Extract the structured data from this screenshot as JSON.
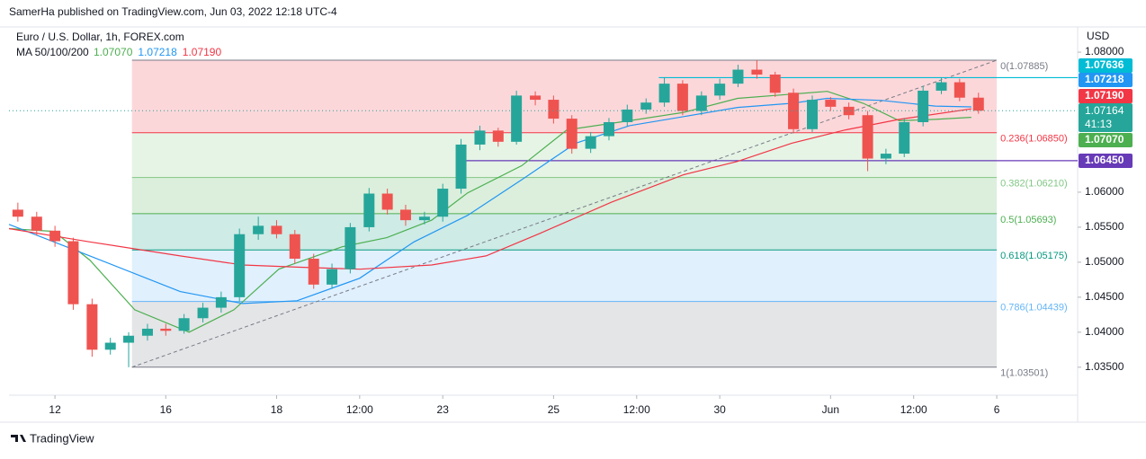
{
  "chart_data": {
    "type": "candlestick",
    "publisher": "SamerHa published on TradingView.com, Jun 03, 2022 12:18 UTC-4",
    "title": "Euro / U.S. Dollar, 1h, FOREX.com",
    "ma_label": "MA 50/100/200",
    "y_unit": "USD",
    "brand": "TradingView",
    "countdown": "41:13",
    "up_color": "#26a69a",
    "down_color": "#ef5350",
    "xlim": [
      -0.83,
      18.46
    ],
    "xticks": [
      {
        "value": 0,
        "label": "12"
      },
      {
        "value": 2,
        "label": "16"
      },
      {
        "value": 4,
        "label": "18"
      },
      {
        "value": 5.5,
        "label": "12:00"
      },
      {
        "value": 7,
        "label": "23"
      },
      {
        "value": 9,
        "label": "25"
      },
      {
        "value": 10.5,
        "label": "12:00"
      },
      {
        "value": 12,
        "label": "30"
      },
      {
        "value": 14,
        "label": "Jun"
      },
      {
        "value": 15.5,
        "label": "12:00"
      },
      {
        "value": 17,
        "label": "6"
      }
    ],
    "ylim": [
      1.031,
      1.0836
    ],
    "yticks": [
      {
        "value": 1.035,
        "label": "1.03500"
      },
      {
        "value": 1.04,
        "label": "1.04000"
      },
      {
        "value": 1.045,
        "label": "1.04500"
      },
      {
        "value": 1.05,
        "label": "1.05000"
      },
      {
        "value": 1.055,
        "label": "1.05500"
      },
      {
        "value": 1.06,
        "label": "1.06000"
      },
      {
        "value": 1.08,
        "label": "1.08000"
      }
    ],
    "x": [
      -0.67,
      -0.33,
      0,
      0.33,
      0.67,
      1,
      1.33,
      1.67,
      2,
      2.33,
      2.67,
      3,
      3.33,
      3.67,
      4,
      4.33,
      4.67,
      5,
      5.33,
      5.67,
      6,
      6.33,
      6.67,
      7,
      7.33,
      7.67,
      8,
      8.33,
      8.67,
      9,
      9.33,
      9.67,
      10,
      10.33,
      10.67,
      11,
      11.33,
      11.67,
      12,
      12.33,
      12.67,
      13,
      13.33,
      13.67,
      14,
      14.33,
      14.67,
      15,
      15.33,
      15.67,
      16,
      16.33,
      16.67
    ],
    "open": [
      1.0575,
      1.0565,
      1.0545,
      1.053,
      1.044,
      1.0375,
      1.0385,
      1.0395,
      1.0405,
      1.0402,
      1.042,
      1.0435,
      1.045,
      1.054,
      1.0552,
      1.054,
      1.0505,
      1.0468,
      1.049,
      1.055,
      1.0598,
      1.0575,
      1.056,
      1.0565,
      1.0605,
      1.0668,
      1.0688,
      1.0672,
      1.0738,
      1.0732,
      1.0705,
      1.0662,
      1.068,
      1.07,
      1.0718,
      1.0728,
      1.0755,
      1.0716,
      1.0738,
      1.0755,
      1.0775,
      1.0768,
      1.0742,
      1.069,
      1.0732,
      1.0722,
      1.071,
      1.0648,
      1.0655,
      1.07,
      1.0745,
      1.0757,
      1.0735
    ],
    "high": [
      1.0585,
      1.0572,
      1.0552,
      1.0535,
      1.0448,
      1.0392,
      1.04,
      1.0412,
      1.0412,
      1.0426,
      1.0442,
      1.0458,
      1.0548,
      1.0565,
      1.056,
      1.0546,
      1.0512,
      1.0498,
      1.0556,
      1.0606,
      1.0605,
      1.0582,
      1.0572,
      1.0612,
      1.0676,
      1.0695,
      1.0692,
      1.0745,
      1.0744,
      1.0738,
      1.071,
      1.0686,
      1.0706,
      1.0725,
      1.0734,
      1.0764,
      1.076,
      1.0744,
      1.0762,
      1.0782,
      1.0788,
      1.0772,
      1.0748,
      1.0738,
      1.0736,
      1.0728,
      1.0716,
      1.0662,
      1.0706,
      1.0752,
      1.0764,
      1.0762,
      1.0742
    ],
    "low": [
      1.0558,
      1.0538,
      1.0522,
      1.0432,
      1.0365,
      1.0368,
      1.035,
      1.0388,
      1.0395,
      1.0398,
      1.0414,
      1.0428,
      1.0444,
      1.0532,
      1.0534,
      1.0498,
      1.0462,
      1.0462,
      1.0484,
      1.0544,
      1.0568,
      1.0552,
      1.0554,
      1.0558,
      1.0598,
      1.066,
      1.0665,
      1.0668,
      1.0724,
      1.0698,
      1.0655,
      1.0656,
      1.0674,
      1.0694,
      1.0712,
      1.0722,
      1.071,
      1.071,
      1.0732,
      1.075,
      1.0762,
      1.0736,
      1.0684,
      1.0686,
      1.0716,
      1.0704,
      1.063,
      1.064,
      1.065,
      1.0694,
      1.074,
      1.073,
      1.0712
    ],
    "close": [
      1.0565,
      1.0545,
      1.053,
      1.044,
      1.0375,
      1.0385,
      1.0395,
      1.0405,
      1.0402,
      1.042,
      1.0435,
      1.045,
      1.054,
      1.0552,
      1.054,
      1.0505,
      1.0468,
      1.049,
      1.055,
      1.0598,
      1.0575,
      1.056,
      1.0565,
      1.0605,
      1.0668,
      1.0688,
      1.0672,
      1.0738,
      1.0732,
      1.0705,
      1.0662,
      1.068,
      1.07,
      1.0718,
      1.0728,
      1.0755,
      1.0716,
      1.0738,
      1.0755,
      1.0775,
      1.0768,
      1.0742,
      1.069,
      1.0732,
      1.0722,
      1.071,
      1.0648,
      1.0655,
      1.07,
      1.0745,
      1.0757,
      1.0735,
      1.07164
    ],
    "ma": [
      {
        "color": "#4caf50",
        "last": {
          "value": 1.0707,
          "label": "1.07070"
        },
        "x": [
          -0.83,
          -0.02,
          0.63,
          1.44,
          2.42,
          3.23,
          4.04,
          5.18,
          5.99,
          6.8,
          7.45,
          8.43,
          9.24,
          10.37,
          11.35,
          12.32,
          13.3,
          13.94,
          14.59,
          15.24,
          15.89,
          16.54
        ],
        "values": [
          1.0548,
          1.0544,
          1.0503,
          1.0432,
          1.04,
          1.0432,
          1.049,
          1.0522,
          1.0535,
          1.056,
          1.0599,
          1.0638,
          1.0689,
          1.0702,
          1.0714,
          1.0734,
          1.074,
          1.0744,
          1.0727,
          1.0702,
          1.0704,
          1.0707
        ]
      },
      {
        "color": "#2196f3",
        "last": {
          "value": 1.07218,
          "label": "1.07218"
        },
        "x": [
          -0.83,
          0.63,
          2.26,
          3.39,
          4.37,
          5.5,
          6.48,
          7.45,
          8.43,
          9.4,
          10.37,
          11.35,
          12.32,
          13.3,
          13.94,
          14.92,
          15.89,
          16.54
        ],
        "values": [
          1.0554,
          1.0509,
          1.0458,
          1.0441,
          1.0445,
          1.0477,
          1.0529,
          1.0567,
          1.0618,
          1.067,
          1.0695,
          1.0708,
          1.0721,
          1.0727,
          1.0734,
          1.0731,
          1.0723,
          1.07218
        ]
      },
      {
        "color": "#f23645",
        "last": {
          "value": 1.0719,
          "label": "1.07190"
        },
        "x": [
          -0.83,
          0.63,
          2.26,
          3.39,
          4.37,
          5.5,
          6.8,
          7.78,
          8.75,
          10.05,
          11.35,
          12.32,
          13.3,
          14.27,
          15.24,
          16.54
        ],
        "values": [
          1.0548,
          1.0529,
          1.0509,
          1.0496,
          1.0493,
          1.049,
          1.0496,
          1.0509,
          1.0541,
          1.0586,
          1.0625,
          1.0644,
          1.067,
          1.0689,
          1.0704,
          1.0719
        ]
      }
    ],
    "fib_x": [
      1.39,
      17.0
    ],
    "fib_levels": [
      {
        "label": "0(1.07885)",
        "value": 1.07885,
        "color": "#787b86"
      },
      {
        "label": "0.236(1.06850)",
        "value": 1.0685,
        "color": "#f23645"
      },
      {
        "label": "0.382(1.06210)",
        "value": 1.0621,
        "color": "#81c784"
      },
      {
        "label": "0.5(1.05693)",
        "value": 1.05693,
        "color": "#4caf50"
      },
      {
        "label": "0.618(1.05175)",
        "value": 1.05175,
        "color": "#089981"
      },
      {
        "label": "0.786(1.04439)",
        "value": 1.04439,
        "color": "#64b5f6"
      },
      {
        "label": "1(1.03501)",
        "value": 1.03501,
        "color": "#787b86"
      }
    ],
    "levels": [
      {
        "value": 1.07636,
        "from": 10.9,
        "color": "#00bcd4"
      },
      {
        "value": 1.0645,
        "label": "1.06450",
        "from": 7.36,
        "color": "#673ab7"
      }
    ]
  }
}
